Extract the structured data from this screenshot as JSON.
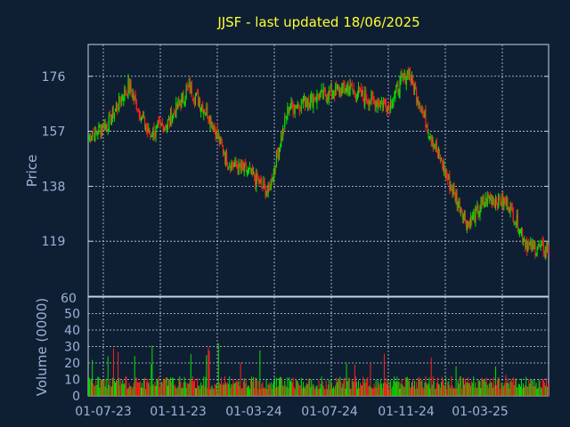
{
  "chart_data": {
    "title": "JJSF - last updated 18/06/2025",
    "type": "candlestick",
    "price_panel": {
      "ylabel": "Price",
      "ylim": [
        100,
        187
      ],
      "yticks": [
        176,
        157,
        138,
        119
      ],
      "y_bottom_label": "60",
      "series_close_by_month": {
        "x": [
          "2023-07-01",
          "2023-08-01",
          "2023-09-01",
          "2023-10-01",
          "2023-11-01",
          "2023-12-01",
          "2024-01-01",
          "2024-02-01",
          "2024-03-01",
          "2024-04-01",
          "2024-05-01",
          "2024-06-01",
          "2024-07-01",
          "2024-08-01",
          "2024-09-01",
          "2024-10-01",
          "2024-11-01",
          "2024-12-01",
          "2025-01-01",
          "2025-02-01",
          "2025-03-01",
          "2025-04-01",
          "2025-05-01",
          "2025-06-01"
        ],
        "close": [
          155,
          160,
          173,
          156,
          160,
          172,
          163,
          146,
          143,
          136,
          165,
          168,
          170,
          172,
          168,
          166,
          178,
          158,
          140,
          125,
          134,
          132,
          117,
          116
        ]
      }
    },
    "volume_panel": {
      "ylabel": "Volume (0000)",
      "ylim": [
        0,
        60
      ],
      "yticks": [
        50,
        40,
        30,
        20,
        10,
        0
      ]
    },
    "x_ticks": [
      "01-07-23",
      "01-11-23",
      "01-03-24",
      "01-07-24",
      "01-11-24",
      "01-03-25"
    ],
    "colors": {
      "up": "#00e000",
      "down": "#ff2020",
      "grid": "#c8d3e6",
      "title": "#ffff33",
      "axis_text": "#9bb3d6"
    },
    "grid": true
  }
}
